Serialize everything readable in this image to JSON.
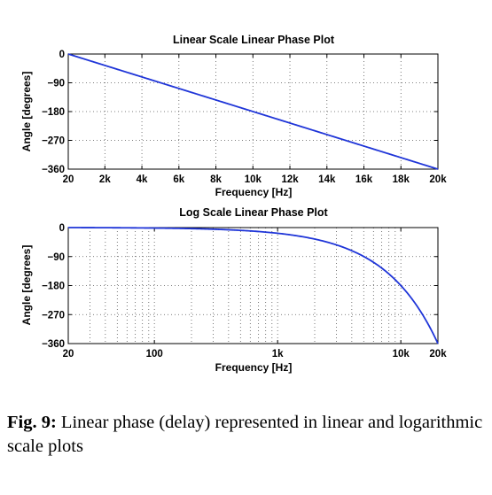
{
  "chart_data": [
    {
      "type": "line",
      "title": "Linear Scale Linear Phase Plot",
      "xlabel": "Frequency [Hz]",
      "ylabel": "Angle [degrees]",
      "xscale": "linear",
      "xlim": [
        20,
        20000
      ],
      "ylim": [
        -360,
        0
      ],
      "xticks": [
        20,
        2000,
        4000,
        6000,
        8000,
        10000,
        12000,
        14000,
        16000,
        18000,
        20000
      ],
      "xtick_labels": [
        "20",
        "2k",
        "4k",
        "6k",
        "8k",
        "10k",
        "12k",
        "14k",
        "16k",
        "18k",
        "20k"
      ],
      "yticks": [
        0,
        -90,
        -180,
        -270,
        -360
      ],
      "ytick_labels": [
        "0",
        "−90",
        "−180",
        "−270",
        "−360"
      ],
      "grid": true,
      "series": [
        {
          "color": "#1f35d8",
          "x": [
            20,
            20000
          ],
          "y": [
            0,
            -360
          ]
        }
      ]
    },
    {
      "type": "line",
      "title": "Log Scale Linear Phase Plot",
      "xlabel": "Frequency [Hz]",
      "ylabel": "Angle [degrees]",
      "xscale": "log",
      "xlim": [
        20,
        20000
      ],
      "ylim": [
        -360,
        0
      ],
      "xticks": [
        20,
        100,
        1000,
        10000,
        20000
      ],
      "xtick_labels": [
        "20",
        "100",
        "1k",
        "10k",
        "20k"
      ],
      "yticks": [
        0,
        -90,
        -180,
        -270,
        -360
      ],
      "ytick_labels": [
        "0",
        "−90",
        "−180",
        "−270",
        "−360"
      ],
      "grid": true,
      "series": [
        {
          "color": "#1f35d8",
          "x": [
            20,
            20000
          ],
          "y": [
            0,
            -360
          ]
        }
      ]
    }
  ],
  "caption": {
    "label": "Fig. 9:",
    "text": "Linear phase (delay) represented in linear and logarithmic scale plots"
  }
}
